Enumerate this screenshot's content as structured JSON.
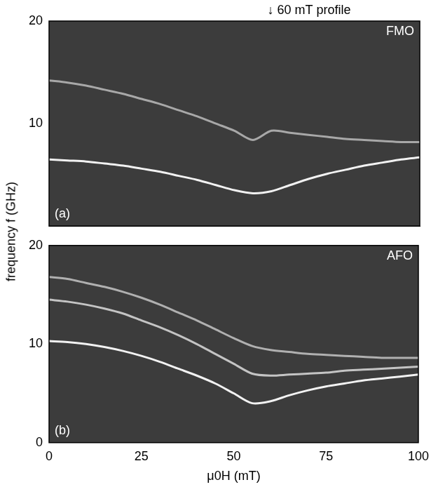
{
  "chart_data": [
    {
      "type": "line",
      "label": "FMO",
      "panel": "(a)",
      "ylabel": "frequency f (GHz)",
      "annotations": [
        {
          "text": "↓ 60 mT profile",
          "x": 60
        }
      ],
      "x": [
        0,
        5,
        10,
        15,
        20,
        25,
        30,
        35,
        40,
        45,
        50,
        55,
        60,
        65,
        70,
        75,
        80,
        85,
        90,
        95,
        100
      ],
      "series": [
        {
          "color": "#f2f2f2",
          "values": [
            6.5,
            6.4,
            6.3,
            6.1,
            5.9,
            5.6,
            5.3,
            4.9,
            4.5,
            4.0,
            3.5,
            3.2,
            3.4,
            4.0,
            4.6,
            5.1,
            5.5,
            5.9,
            6.2,
            6.5,
            6.7
          ]
        },
        {
          "color": "#a8a8a8",
          "values": [
            14.2,
            14.0,
            13.7,
            13.3,
            12.9,
            12.4,
            11.9,
            11.3,
            10.7,
            10.0,
            9.3,
            8.4,
            9.3,
            9.1,
            8.9,
            8.7,
            8.5,
            8.4,
            8.3,
            8.2,
            8.2
          ]
        }
      ],
      "xlim": [
        0,
        100
      ],
      "xticks": [
        0,
        25,
        50,
        75,
        100
      ],
      "ylim": [
        0,
        20
      ],
      "yticks": [
        10,
        20
      ],
      "grid": false,
      "tick_labels": "y"
    },
    {
      "type": "line",
      "label": "AFO",
      "panel": "(b)",
      "xlabel": "μ0H (mT)",
      "x": [
        0,
        5,
        10,
        15,
        20,
        25,
        30,
        35,
        40,
        45,
        50,
        55,
        60,
        65,
        70,
        75,
        80,
        85,
        90,
        95,
        100
      ],
      "series": [
        {
          "color": "#f2f2f2",
          "values": [
            10.3,
            10.2,
            10.0,
            9.7,
            9.3,
            8.8,
            8.2,
            7.5,
            6.8,
            6.0,
            5.0,
            4.0,
            4.2,
            4.8,
            5.3,
            5.7,
            6.0,
            6.3,
            6.5,
            6.7,
            6.9
          ]
        },
        {
          "color": "#c4c4c4",
          "values": [
            14.5,
            14.3,
            14.0,
            13.6,
            13.1,
            12.4,
            11.7,
            10.9,
            10.0,
            9.0,
            8.0,
            7.0,
            6.8,
            6.9,
            7.0,
            7.1,
            7.3,
            7.4,
            7.5,
            7.6,
            7.7
          ]
        },
        {
          "color": "#b0b0b0",
          "values": [
            16.8,
            16.6,
            16.2,
            15.8,
            15.3,
            14.7,
            14.0,
            13.2,
            12.4,
            11.5,
            10.6,
            9.8,
            9.4,
            9.2,
            9.0,
            8.9,
            8.8,
            8.7,
            8.6,
            8.6,
            8.6
          ]
        }
      ],
      "xlim": [
        0,
        100
      ],
      "xticks": [
        0,
        25,
        50,
        75,
        100
      ],
      "ylim": [
        0,
        20
      ],
      "yticks": [
        0,
        10,
        20
      ],
      "grid": false
    }
  ]
}
